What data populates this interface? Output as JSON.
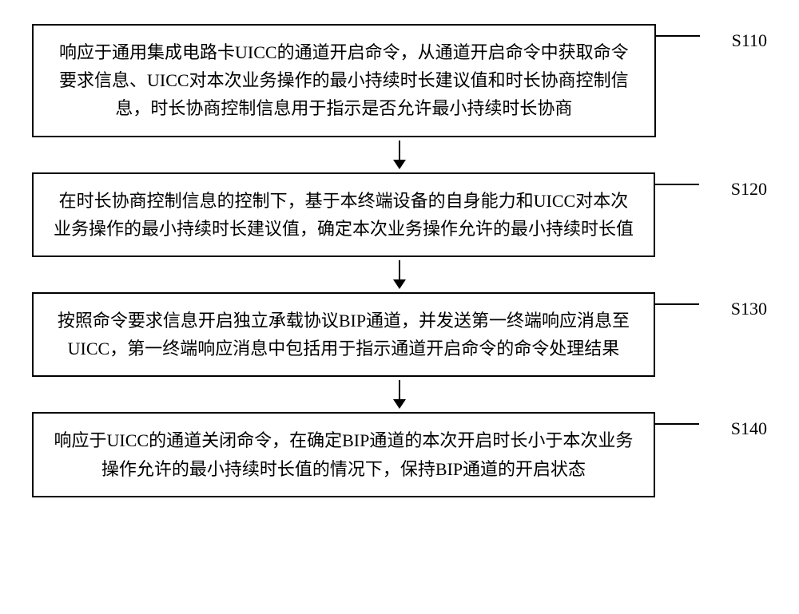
{
  "flowchart": {
    "type": "flowchart",
    "background_color": "#ffffff",
    "box_border_color": "#000000",
    "box_border_width": 2,
    "text_color": "#000000",
    "font_size": 22,
    "font_family": "SimSun",
    "arrow_color": "#000000",
    "steps": [
      {
        "label": "S110",
        "text": "响应于通用集成电路卡UICC的通道开启命令，从通道开启命令中获取命令要求信息、UICC对本次业务操作的最小持续时长建议值和时长协商控制信息，时长协商控制信息用于指示是否允许最小持续时长协商"
      },
      {
        "label": "S120",
        "text": "在时长协商控制信息的控制下，基于本终端设备的自身能力和UICC对本次业务操作的最小持续时长建议值，确定本次业务操作允许的最小持续时长值"
      },
      {
        "label": "S130",
        "text": "按照命令要求信息开启独立承载协议BIP通道，并发送第一终端响应消息至UICC，第一终端响应消息中包括用于指示通道开启命令的命令处理结果"
      },
      {
        "label": "S140",
        "text": "响应于UICC的通道关闭命令，在确定BIP通道的本次开启时长小于本次业务操作允许的最小持续时长值的情况下，保持BIP通道的开启状态"
      }
    ]
  }
}
